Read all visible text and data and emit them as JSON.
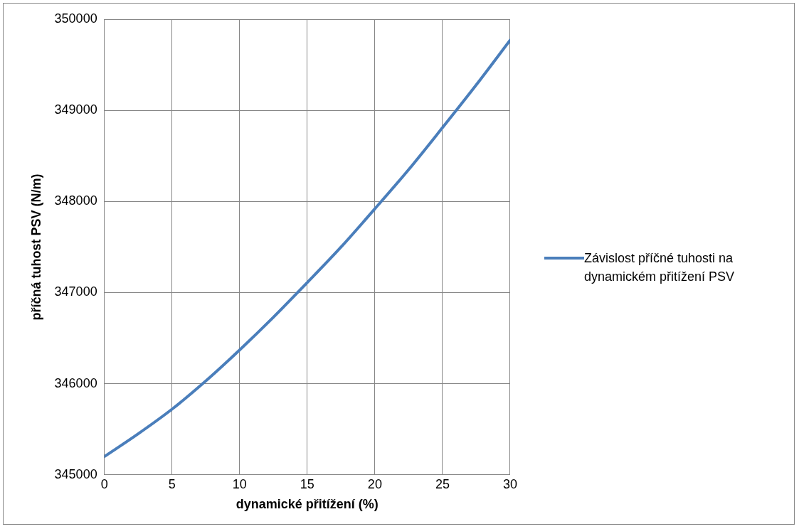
{
  "chart_data": {
    "type": "line",
    "xlabel": "dynamické přitížení (%)",
    "ylabel": "příčná tuhost PSV (N/m)",
    "x": [
      0,
      2.5,
      5,
      7.5,
      10,
      12.5,
      15,
      17.5,
      20,
      22.5,
      25,
      27.5,
      30
    ],
    "series": [
      {
        "name": "Závislost příčné tuhosti na dynamickém přitížení PSV",
        "color": "#4a7ebb",
        "values": [
          345200,
          345450,
          345720,
          346030,
          346370,
          346730,
          347110,
          347500,
          347920,
          348350,
          348810,
          349280,
          349770
        ]
      }
    ],
    "xlim": [
      0,
      30
    ],
    "xticks": [
      0,
      5,
      10,
      15,
      20,
      25,
      30
    ],
    "ylim": [
      345000,
      350000
    ],
    "yticks": [
      345000,
      346000,
      347000,
      348000,
      349000,
      350000
    ],
    "grid": true,
    "legend": "right",
    "marker": "none",
    "line_style": "solid"
  }
}
